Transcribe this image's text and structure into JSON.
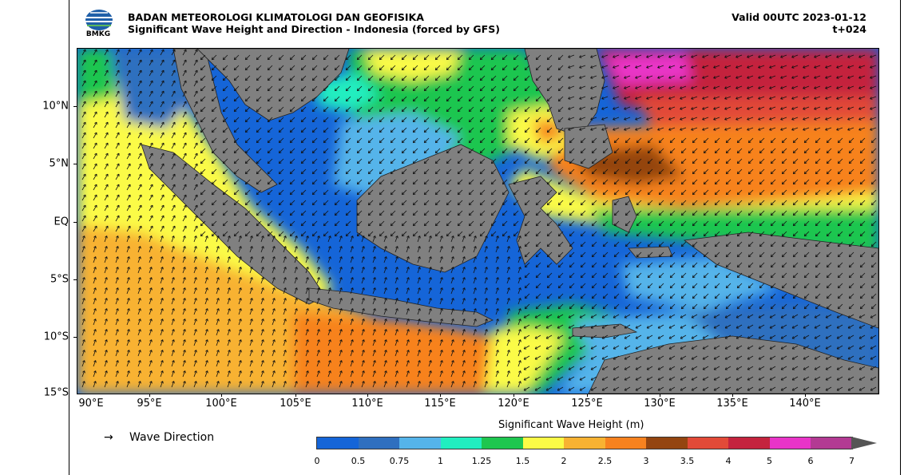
{
  "header": {
    "org_name": "BADAN METEOROLOGI KLIMATOLOGI DAN GEOFISIKA",
    "product_title": "Significant Wave Height and Direction - Indonesia (forced by GFS)",
    "valid_time": "Valid 00UTC 2023-01-12",
    "forecast_step": "t+024",
    "logo_text": "BMKG"
  },
  "map": {
    "lat_labels": [
      "10°N",
      "5°N",
      "EQ",
      "5°S",
      "10°S",
      "15°S"
    ],
    "lon_labels": [
      "90°E",
      "95°E",
      "100°E",
      "105°E",
      "110°E",
      "115°E",
      "120°E",
      "125°E",
      "130°E",
      "135°E",
      "140°E"
    ],
    "land_color": "#808080",
    "ocean_base_color": "#1565d8"
  },
  "colorbar": {
    "title": "Significant Wave Height (m)",
    "tick_labels": [
      "0",
      "0.5",
      "0.75",
      "1",
      "1.25",
      "1.5",
      "2",
      "2.5",
      "3",
      "3.5",
      "4",
      "5",
      "6",
      "7"
    ],
    "colors": [
      "#1565d8",
      "#2f6fbf",
      "#55b4ea",
      "#21eec0",
      "#1ec64f",
      "#fbfb46",
      "#f8b232",
      "#f7821f",
      "#944510",
      "#e24a38",
      "#c4233e",
      "#e934c8",
      "#b33a93"
    ],
    "extend_color": "#555555"
  },
  "legend": {
    "arrow_symbol": "→",
    "label": "Wave Direction"
  }
}
